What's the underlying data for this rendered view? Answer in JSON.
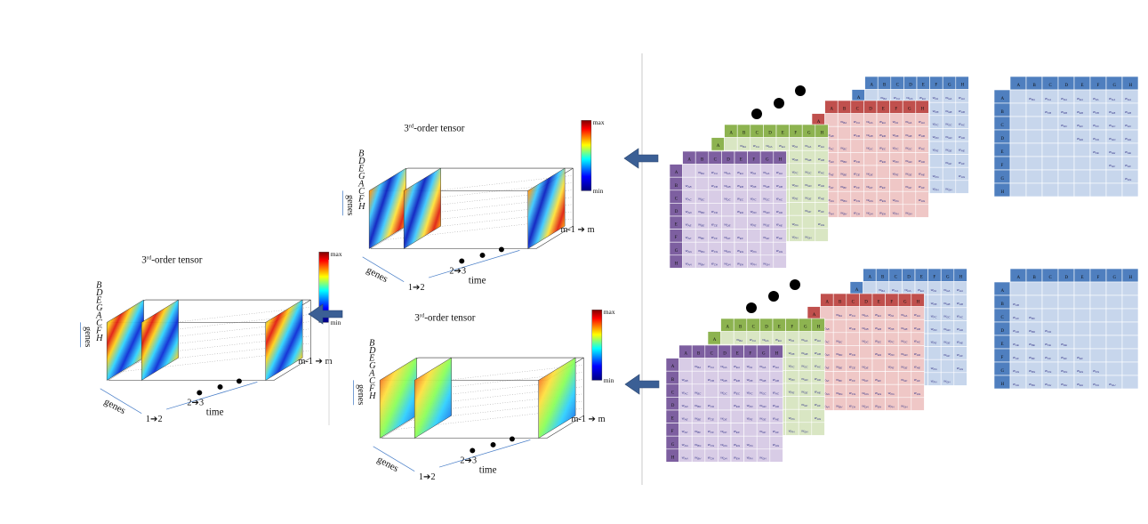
{
  "tensor": {
    "title_prefix": "3",
    "title_sup": "rd",
    "title_suffix": "-order tensor",
    "gene_letters": [
      "B",
      "D",
      "E",
      "G",
      "A",
      "C",
      "F",
      "H"
    ],
    "genes_label": "genes",
    "time_label": "time",
    "step_first": "1",
    "step_second_from": "2",
    "step_second_to": "3",
    "step_first_to": "2",
    "step_last_from": "m-1",
    "step_last_to": "m",
    "colorbar_max": "max",
    "colorbar_min": "min"
  },
  "matrices": {
    "headers": [
      "A",
      "B",
      "C",
      "D",
      "E",
      "F",
      "G",
      "H"
    ],
    "layer_colors": {
      "blue_header": "#4f7fbf",
      "blue_light": "#c7d6ec",
      "red_header": "#c0504d",
      "red_light": "#efc7c6",
      "green_header": "#8db350",
      "green_light": "#d9e6c3",
      "purple_header": "#7d5fa0",
      "purple_light": "#d8cce6"
    }
  },
  "arrow_color": "#3b5f95"
}
